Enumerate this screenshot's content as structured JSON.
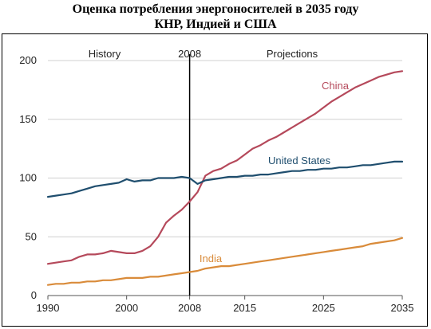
{
  "title": {
    "line1": "Оценка потребления энергоносителей в 2035 году",
    "line2": "КНР, Индией и США"
  },
  "chart_data": {
    "type": "line",
    "title": "Оценка потребления энергоносителей в 2035 году КНР, Индией и США",
    "xlim": [
      1990,
      2035
    ],
    "ylim": [
      0,
      200
    ],
    "x_ticks": [
      "1990",
      "2000",
      "2008",
      "2015",
      "2025",
      "2035"
    ],
    "y_ticks": [
      "0",
      "50",
      "100",
      "150",
      "200"
    ],
    "grid": "horizontal",
    "divider_year": 2008,
    "region_labels": {
      "history": "History",
      "divider": "2008",
      "projections": "Projections"
    },
    "series": [
      {
        "name": "China",
        "color": "#b5495b",
        "x": [
          1990,
          1991,
          1992,
          1993,
          1994,
          1995,
          1996,
          1997,
          1998,
          1999,
          2000,
          2001,
          2002,
          2003,
          2004,
          2005,
          2006,
          2007,
          2008,
          2009,
          2010,
          2011,
          2012,
          2013,
          2014,
          2015,
          2016,
          2017,
          2018,
          2019,
          2020,
          2021,
          2022,
          2023,
          2024,
          2025,
          2026,
          2027,
          2028,
          2029,
          2030,
          2031,
          2032,
          2033,
          2034,
          2035
        ],
        "values": [
          27,
          28,
          29,
          30,
          33,
          35,
          35,
          36,
          38,
          37,
          36,
          36,
          38,
          42,
          50,
          62,
          68,
          73,
          80,
          88,
          102,
          106,
          108,
          112,
          115,
          120,
          125,
          128,
          132,
          135,
          139,
          143,
          147,
          151,
          155,
          160,
          165,
          169,
          173,
          177,
          180,
          183,
          186,
          188,
          190,
          191
        ]
      },
      {
        "name": "United States",
        "color": "#1f4e6e",
        "x": [
          1990,
          1991,
          1992,
          1993,
          1994,
          1995,
          1996,
          1997,
          1998,
          1999,
          2000,
          2001,
          2002,
          2003,
          2004,
          2005,
          2006,
          2007,
          2008,
          2009,
          2010,
          2011,
          2012,
          2013,
          2014,
          2015,
          2016,
          2017,
          2018,
          2019,
          2020,
          2021,
          2022,
          2023,
          2024,
          2025,
          2026,
          2027,
          2028,
          2029,
          2030,
          2031,
          2032,
          2033,
          2034,
          2035
        ],
        "values": [
          84,
          85,
          86,
          87,
          89,
          91,
          93,
          94,
          95,
          96,
          99,
          97,
          98,
          98,
          100,
          100,
          100,
          101,
          100,
          95,
          98,
          99,
          100,
          101,
          101,
          102,
          102,
          103,
          103,
          104,
          105,
          106,
          106,
          107,
          107,
          108,
          108,
          109,
          109,
          110,
          111,
          111,
          112,
          113,
          114,
          114
        ]
      },
      {
        "name": "India",
        "color": "#d98b3a",
        "x": [
          1990,
          1991,
          1992,
          1993,
          1994,
          1995,
          1996,
          1997,
          1998,
          1999,
          2000,
          2001,
          2002,
          2003,
          2004,
          2005,
          2006,
          2007,
          2008,
          2009,
          2010,
          2011,
          2012,
          2013,
          2014,
          2015,
          2016,
          2017,
          2018,
          2019,
          2020,
          2021,
          2022,
          2023,
          2024,
          2025,
          2026,
          2027,
          2028,
          2029,
          2030,
          2031,
          2032,
          2033,
          2034,
          2035
        ],
        "values": [
          9,
          10,
          10,
          11,
          11,
          12,
          12,
          13,
          13,
          14,
          15,
          15,
          15,
          16,
          16,
          17,
          18,
          19,
          20,
          21,
          23,
          24,
          25,
          25,
          26,
          27,
          28,
          29,
          30,
          31,
          32,
          33,
          34,
          35,
          36,
          37,
          38,
          39,
          40,
          41,
          42,
          44,
          45,
          46,
          47,
          49
        ]
      }
    ]
  }
}
